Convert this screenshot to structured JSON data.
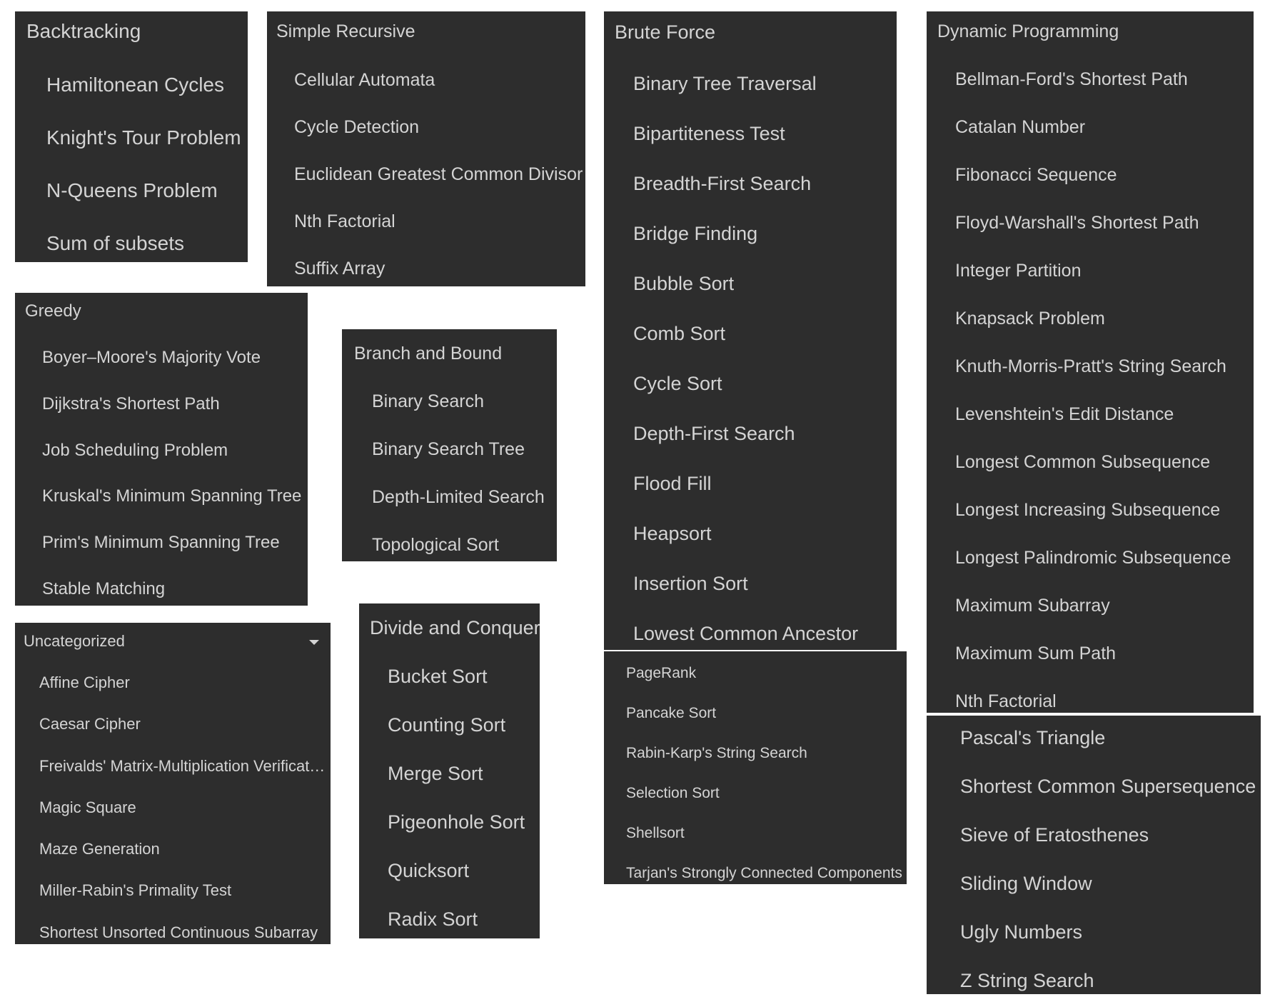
{
  "colors": {
    "panel_bg": "#2d2d2d",
    "text": "#d4d4d4",
    "page_bg": "#ffffff"
  },
  "backtracking": {
    "title": "Backtracking",
    "items": [
      "Hamiltonean Cycles",
      "Knight's Tour Problem",
      "N-Queens Problem",
      "Sum of subsets"
    ]
  },
  "simple_recursive": {
    "title": "Simple Recursive",
    "items": [
      "Cellular Automata",
      "Cycle Detection",
      "Euclidean Greatest Common Divisor",
      "Nth Factorial",
      "Suffix Array"
    ]
  },
  "brute_force": {
    "title": "Brute Force",
    "items": [
      "Binary Tree Traversal",
      "Bipartiteness Test",
      "Breadth-First Search",
      "Bridge Finding",
      "Bubble Sort",
      "Comb Sort",
      "Cycle Sort",
      "Depth-First Search",
      "Flood Fill",
      "Heapsort",
      "Insertion Sort",
      "Lowest Common Ancestor"
    ],
    "items_cont": [
      "PageRank",
      "Pancake Sort",
      "Rabin-Karp's String Search",
      "Selection Sort",
      "Shellsort",
      "Tarjan's Strongly Connected Components"
    ]
  },
  "dynamic_programming": {
    "title": "Dynamic Programming",
    "items": [
      "Bellman-Ford's Shortest Path",
      "Catalan Number",
      "Fibonacci Sequence",
      "Floyd-Warshall's Shortest Path",
      "Integer Partition",
      "Knapsack Problem",
      "Knuth-Morris-Pratt's String Search",
      "Levenshtein's Edit Distance",
      "Longest Common Subsequence",
      "Longest Increasing Subsequence",
      "Longest Palindromic Subsequence",
      "Maximum Subarray",
      "Maximum Sum Path",
      "Nth Factorial"
    ],
    "items_cont": [
      "Pascal's Triangle",
      "Shortest Common Supersequence",
      "Sieve of Eratosthenes",
      "Sliding Window",
      "Ugly Numbers",
      "Z String Search"
    ]
  },
  "greedy": {
    "title": "Greedy",
    "items": [
      "Boyer–Moore's Majority Vote",
      "Dijkstra's Shortest Path",
      "Job Scheduling Problem",
      "Kruskal's Minimum Spanning Tree",
      "Prim's Minimum Spanning Tree",
      "Stable Matching"
    ]
  },
  "branch_and_bound": {
    "title": "Branch and Bound",
    "items": [
      "Binary Search",
      "Binary Search Tree",
      "Depth-Limited Search",
      "Topological Sort"
    ]
  },
  "uncategorized": {
    "title": "Uncategorized",
    "chevron": "chevron-down-icon",
    "items": [
      "Affine Cipher",
      "Caesar Cipher",
      "Freivalds' Matrix-Multiplication Verificat…",
      "Magic Square",
      "Maze Generation",
      "Miller-Rabin's Primality Test",
      "Shortest Unsorted Continuous Subarray"
    ]
  },
  "divide_and_conquer": {
    "title": "Divide and Conquer",
    "items": [
      "Bucket Sort",
      "Counting Sort",
      "Merge Sort",
      "Pigeonhole Sort",
      "Quicksort",
      "Radix Sort"
    ]
  }
}
